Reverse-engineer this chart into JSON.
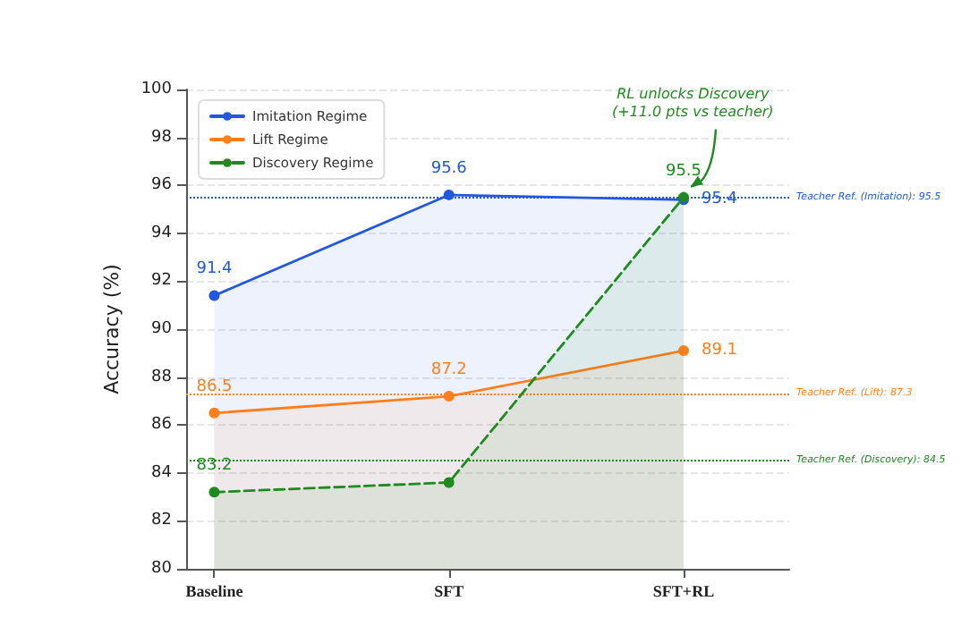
{
  "chart_data": {
    "type": "area",
    "ylabel": "Accuracy (%)",
    "categories": [
      "Baseline",
      "SFT",
      "SFT+RL"
    ],
    "series": [
      {
        "name": "Imitation Regime",
        "color": "#2457e0",
        "values": [
          91.4,
          95.6,
          95.4
        ],
        "value_labels": [
          "91.4",
          "95.6",
          "95.4"
        ],
        "line_style": "solid"
      },
      {
        "name": "Lift Regime",
        "color": "#ff7f1e",
        "values": [
          86.5,
          87.2,
          89.1
        ],
        "value_labels": [
          "86.5",
          "87.2",
          "89.1"
        ],
        "line_style": "solid"
      },
      {
        "name": "Discovery Regime",
        "color": "#1f8a1f",
        "values": [
          83.2,
          83.6,
          95.5
        ],
        "value_labels": [
          "83.2",
          null,
          "95.5"
        ],
        "line_style": "dashed"
      }
    ],
    "ylim": [
      80,
      100
    ],
    "yticks": [
      80,
      82,
      84,
      86,
      88,
      90,
      92,
      94,
      96,
      98,
      100
    ],
    "grid": "y",
    "legend": "top left",
    "marker": "circle",
    "ref_lines": [
      {
        "axis": "y",
        "value": 95.5,
        "label": "Teacher Ref. (Imitation): 95.5",
        "color": "#2457e0",
        "line_style": "dotted"
      },
      {
        "axis": "y",
        "value": 87.3,
        "label": "Teacher Ref. (Lift): 87.3",
        "color": "#ff7f1e",
        "line_style": "dotted"
      },
      {
        "axis": "y",
        "value": 84.5,
        "label": "Teacher Ref. (Discovery): 84.5",
        "color": "#1f8a1f",
        "line_style": "dotted"
      }
    ],
    "annotations": [
      {
        "text": "RL unlocks Discovery\n(+11.0 pts vs teacher)",
        "x": "SFT+RL",
        "y": 95.5
      }
    ]
  }
}
